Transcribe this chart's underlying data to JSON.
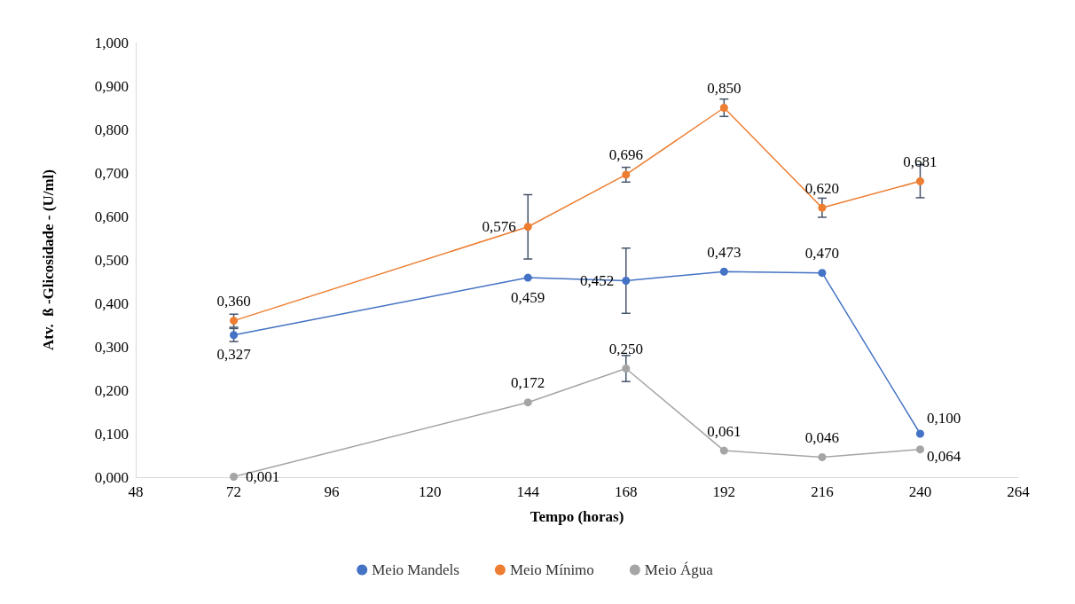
{
  "chart_data": {
    "type": "line",
    "xlabel": "Tempo (horas)",
    "ylabel": "Atv.  ß -Glicosidade - (U/ml)",
    "x": [
      72,
      144,
      168,
      192,
      216,
      240
    ],
    "xlim": [
      48,
      264
    ],
    "xticks": [
      48,
      72,
      96,
      120,
      144,
      168,
      192,
      216,
      240,
      264
    ],
    "ylim": [
      0,
      1
    ],
    "yticks": [
      {
        "value": 0,
        "label": "0,000"
      },
      {
        "value": 0.1,
        "label": "0,100"
      },
      {
        "value": 0.2,
        "label": "0,200"
      },
      {
        "value": 0.3,
        "label": "0,300"
      },
      {
        "value": 0.4,
        "label": "0,400"
      },
      {
        "value": 0.5,
        "label": "0,500"
      },
      {
        "value": 0.6,
        "label": "0,600"
      },
      {
        "value": 0.7,
        "label": "0,700"
      },
      {
        "value": 0.8,
        "label": "0,800"
      },
      {
        "value": 0.9,
        "label": "0,900"
      },
      {
        "value": 1,
        "label": "1,000"
      }
    ],
    "grid": false,
    "legend": "bottom",
    "marker": "circle",
    "line_style": "solid",
    "series": [
      {
        "name": "Meio Mandels",
        "color": "#4472c4",
        "values": [
          0.327,
          0.459,
          0.452,
          0.473,
          0.47,
          0.1
        ],
        "errors": [
          0.015,
          null,
          0.075,
          null,
          null,
          null
        ],
        "value_labels": [
          "0,327",
          "0,459",
          "0,452",
          "0,473",
          "0,470",
          "0,100"
        ]
      },
      {
        "name": "Meio Mínimo",
        "color": "#ed7d31",
        "values": [
          0.36,
          0.576,
          0.696,
          0.85,
          0.62,
          0.681
        ],
        "errors": [
          0.015,
          0.074,
          0.017,
          0.02,
          0.022,
          0.038
        ],
        "value_labels": [
          "0,360",
          "0,576",
          "0,696",
          "0,850",
          "0,620",
          "0,681"
        ]
      },
      {
        "name": "Meio Água",
        "color": "#a5a5a5",
        "values": [
          0.001,
          0.172,
          0.25,
          0.061,
          0.046,
          0.064
        ],
        "errors": [
          null,
          null,
          0.03,
          null,
          null,
          null
        ],
        "value_labels": [
          "0,001",
          "0,172",
          "0,250",
          "0,061",
          "0,046",
          "0,064"
        ]
      }
    ]
  }
}
